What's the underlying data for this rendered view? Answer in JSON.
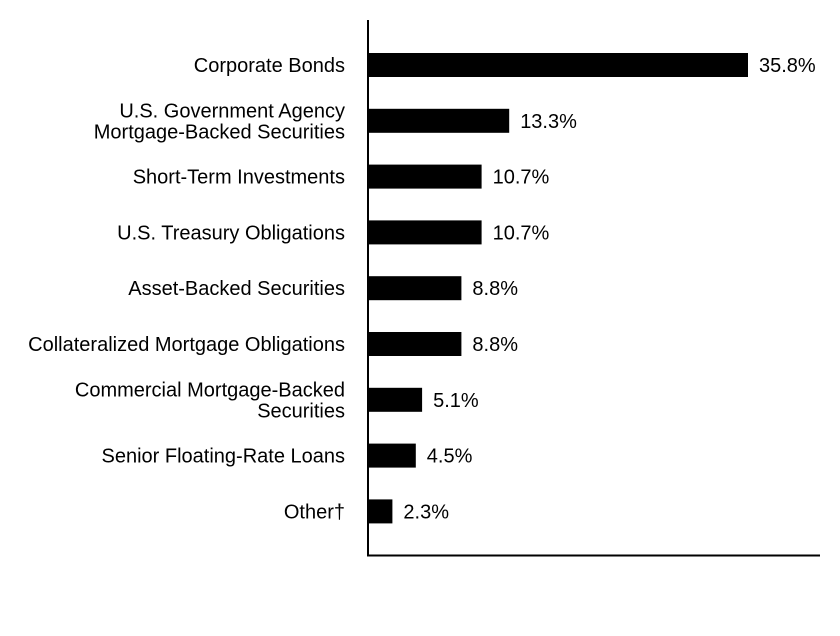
{
  "chart_data": {
    "type": "bar",
    "orientation": "horizontal",
    "title": "",
    "xlabel": "",
    "ylabel": "",
    "grid": false,
    "legend": "none",
    "bar_color": "#000000",
    "xlim": [
      0,
      40
    ],
    "categories": [
      [
        "Corporate Bonds"
      ],
      [
        "U.S. Government Agency",
        "Mortgage-Backed Securities"
      ],
      [
        "Short-Term Investments"
      ],
      [
        "U.S. Treasury Obligations"
      ],
      [
        "Asset-Backed Securities"
      ],
      [
        "Collateralized Mortgage Obligations"
      ],
      [
        "Commercial Mortgage-Backed",
        "Securities"
      ],
      [
        "Senior Floating-Rate Loans"
      ],
      [
        "Other†"
      ]
    ],
    "values": [
      35.8,
      13.3,
      10.7,
      10.7,
      8.8,
      8.8,
      5.1,
      4.5,
      2.3
    ],
    "value_labels": [
      "35.8%",
      "13.3%",
      "10.7%",
      "10.7%",
      "8.8%",
      "8.8%",
      "5.1%",
      "4.5%",
      "2.3%"
    ]
  }
}
